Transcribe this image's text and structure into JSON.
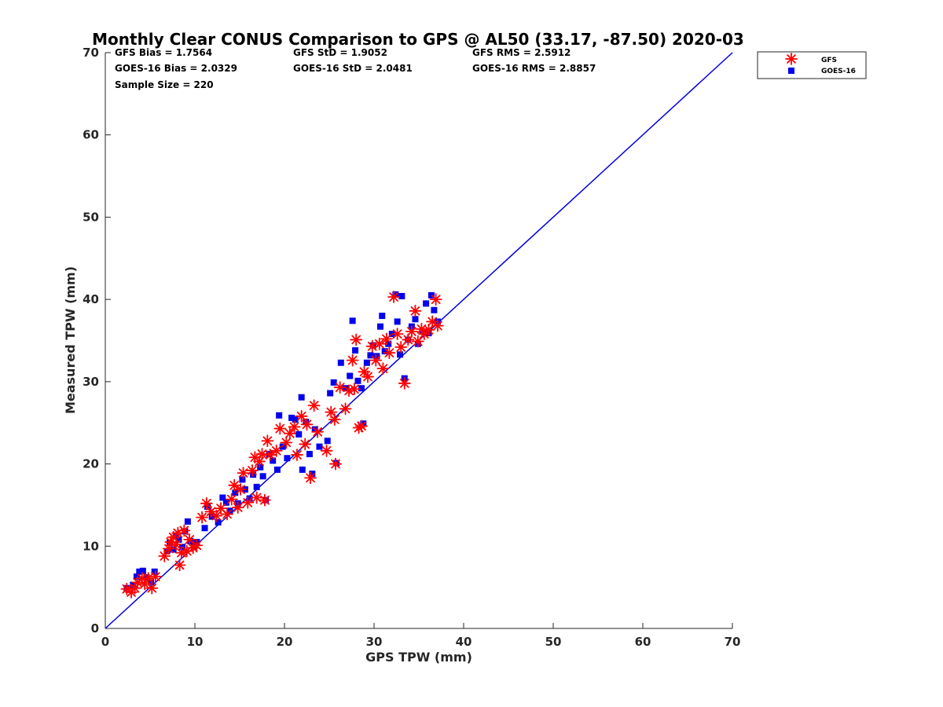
{
  "chart_data": {
    "type": "scatter",
    "title": "Monthly Clear CONUS Comparison to GPS @ AL50 (33.17, -87.50) 2020-03",
    "xlabel": "GPS TPW (mm)",
    "ylabel": "Measured TPW (mm)",
    "xlim": [
      0,
      70
    ],
    "ylim": [
      0,
      70
    ],
    "xticks": [
      "0",
      "10",
      "20",
      "30",
      "40",
      "50",
      "60",
      "70"
    ],
    "yticks": [
      "0",
      "10",
      "20",
      "30",
      "40",
      "50",
      "60",
      "70"
    ],
    "grid": false,
    "legend_position": "top-right, outside plot",
    "stats": [
      [
        "GFS Bias = 1.7564",
        "GFS StD = 1.9052",
        "GFS RMS = 2.5912"
      ],
      [
        "GOES-16 Bias = 2.0329",
        "GOES-16 StD = 2.0481",
        "GOES-16 RMS = 2.8857"
      ],
      [
        "Sample Size = 220"
      ]
    ],
    "reference_line": {
      "x": [
        0,
        70
      ],
      "y": [
        0,
        70
      ],
      "color": "#0000dd"
    },
    "series": [
      {
        "name": "GFS",
        "marker": "asterisk",
        "color": "#ff0000",
        "points": [
          [
            2.4,
            4.8
          ],
          [
            2.9,
            4.4
          ],
          [
            3.3,
            4.9
          ],
          [
            3.6,
            5.6
          ],
          [
            4.1,
            6.1
          ],
          [
            4.4,
            5.4
          ],
          [
            4.8,
            6.1
          ],
          [
            5.2,
            4.9
          ],
          [
            5.6,
            6.3
          ],
          [
            6.6,
            8.8
          ],
          [
            7.1,
            9.7
          ],
          [
            7.3,
            10.5
          ],
          [
            7.6,
            11.1
          ],
          [
            7.9,
            10.2
          ],
          [
            8.1,
            11.6
          ],
          [
            8.3,
            7.7
          ],
          [
            8.5,
            9.2
          ],
          [
            8.8,
            11.9
          ],
          [
            9.1,
            9.4
          ],
          [
            9.4,
            10.8
          ],
          [
            9.8,
            9.8
          ],
          [
            10.2,
            10.1
          ],
          [
            10.8,
            13.5
          ],
          [
            11.3,
            15.2
          ],
          [
            11.8,
            14.2
          ],
          [
            12.4,
            13.7
          ],
          [
            12.9,
            14.6
          ],
          [
            13.6,
            13.9
          ],
          [
            14.1,
            15.7
          ],
          [
            14.4,
            17.4
          ],
          [
            14.8,
            14.7
          ],
          [
            15.1,
            16.9
          ],
          [
            15.4,
            18.9
          ],
          [
            15.9,
            15.3
          ],
          [
            16.4,
            19.2
          ],
          [
            16.7,
            20.8
          ],
          [
            16.9,
            15.9
          ],
          [
            17.2,
            20.3
          ],
          [
            17.5,
            21.2
          ],
          [
            17.8,
            15.6
          ],
          [
            18.1,
            22.8
          ],
          [
            18.4,
            21.1
          ],
          [
            19.1,
            21.6
          ],
          [
            19.5,
            24.3
          ],
          [
            20.2,
            22.6
          ],
          [
            20.6,
            23.7
          ],
          [
            21.1,
            24.5
          ],
          [
            21.4,
            21.1
          ],
          [
            21.9,
            25.8
          ],
          [
            22.3,
            22.4
          ],
          [
            22.5,
            24.8
          ],
          [
            22.9,
            18.3
          ],
          [
            23.3,
            27.1
          ],
          [
            23.7,
            23.9
          ],
          [
            24.7,
            21.6
          ],
          [
            25.2,
            26.3
          ],
          [
            25.6,
            25.4
          ],
          [
            25.7,
            20.0
          ],
          [
            26.2,
            29.3
          ],
          [
            26.8,
            26.7
          ],
          [
            27.2,
            28.9
          ],
          [
            27.6,
            32.6
          ],
          [
            27.8,
            29.1
          ],
          [
            28.0,
            35.1
          ],
          [
            28.3,
            24.4
          ],
          [
            28.6,
            24.6
          ],
          [
            28.9,
            31.2
          ],
          [
            29.3,
            30.6
          ],
          [
            29.8,
            34.3
          ],
          [
            30.2,
            32.6
          ],
          [
            30.6,
            34.6
          ],
          [
            31.0,
            31.6
          ],
          [
            31.4,
            35.2
          ],
          [
            31.7,
            33.5
          ],
          [
            32.2,
            40.3
          ],
          [
            32.6,
            35.8
          ],
          [
            33.0,
            34.2
          ],
          [
            33.4,
            29.8
          ],
          [
            33.8,
            35.1
          ],
          [
            34.2,
            36.1
          ],
          [
            34.6,
            38.6
          ],
          [
            34.9,
            34.9
          ],
          [
            35.3,
            36.4
          ],
          [
            35.6,
            35.8
          ],
          [
            36.1,
            36.3
          ],
          [
            36.5,
            37.3
          ],
          [
            36.9,
            40.0
          ],
          [
            37.1,
            36.8
          ]
        ]
      },
      {
        "name": "GOES-16",
        "marker": "square",
        "color": "#0000ee",
        "points": [
          [
            2.4,
            4.9
          ],
          [
            3.1,
            5.3
          ],
          [
            3.5,
            6.3
          ],
          [
            3.8,
            6.9
          ],
          [
            4.2,
            7.0
          ],
          [
            4.6,
            6.2
          ],
          [
            5.1,
            5.6
          ],
          [
            5.5,
            6.9
          ],
          [
            6.9,
            9.4
          ],
          [
            7.2,
            10.4
          ],
          [
            7.6,
            9.6
          ],
          [
            7.9,
            11.3
          ],
          [
            8.2,
            10.8
          ],
          [
            8.6,
            9.9
          ],
          [
            8.9,
            11.8
          ],
          [
            9.2,
            13.0
          ],
          [
            9.5,
            10.6
          ],
          [
            9.9,
            9.9
          ],
          [
            10.2,
            10.5
          ],
          [
            11.1,
            12.2
          ],
          [
            11.4,
            14.8
          ],
          [
            11.9,
            13.6
          ],
          [
            12.6,
            12.9
          ],
          [
            13.1,
            15.9
          ],
          [
            13.5,
            15.3
          ],
          [
            13.9,
            14.3
          ],
          [
            14.5,
            16.5
          ],
          [
            14.8,
            15.2
          ],
          [
            15.3,
            18.1
          ],
          [
            15.6,
            16.9
          ],
          [
            16.1,
            15.8
          ],
          [
            16.5,
            18.7
          ],
          [
            16.9,
            17.2
          ],
          [
            17.3,
            19.6
          ],
          [
            17.6,
            18.5
          ],
          [
            17.9,
            15.6
          ],
          [
            18.3,
            21.2
          ],
          [
            18.7,
            20.4
          ],
          [
            19.2,
            19.3
          ],
          [
            19.4,
            25.9
          ],
          [
            19.8,
            22.1
          ],
          [
            20.3,
            20.7
          ],
          [
            20.8,
            25.6
          ],
          [
            21.2,
            25.4
          ],
          [
            21.6,
            23.6
          ],
          [
            21.9,
            28.1
          ],
          [
            22.0,
            19.3
          ],
          [
            22.4,
            25.1
          ],
          [
            22.8,
            21.2
          ],
          [
            23.1,
            18.8
          ],
          [
            23.4,
            24.2
          ],
          [
            23.9,
            22.1
          ],
          [
            24.8,
            22.8
          ],
          [
            25.1,
            28.6
          ],
          [
            25.5,
            29.9
          ],
          [
            25.8,
            20.1
          ],
          [
            26.3,
            32.3
          ],
          [
            26.8,
            29.2
          ],
          [
            27.3,
            30.7
          ],
          [
            27.6,
            37.4
          ],
          [
            27.9,
            33.8
          ],
          [
            28.2,
            30.1
          ],
          [
            28.6,
            29.2
          ],
          [
            28.8,
            24.9
          ],
          [
            29.2,
            32.3
          ],
          [
            29.6,
            33.2
          ],
          [
            29.9,
            34.4
          ],
          [
            30.3,
            33.1
          ],
          [
            30.7,
            36.7
          ],
          [
            30.9,
            38.0
          ],
          [
            31.2,
            33.7
          ],
          [
            31.6,
            34.6
          ],
          [
            32.0,
            35.8
          ],
          [
            32.4,
            40.6
          ],
          [
            32.6,
            37.3
          ],
          [
            32.9,
            33.3
          ],
          [
            33.1,
            40.4
          ],
          [
            33.4,
            30.4
          ],
          [
            33.8,
            35.1
          ],
          [
            34.2,
            36.7
          ],
          [
            34.6,
            37.6
          ],
          [
            34.9,
            34.6
          ],
          [
            35.4,
            36.1
          ],
          [
            35.8,
            39.5
          ],
          [
            36.1,
            35.9
          ],
          [
            36.4,
            40.5
          ],
          [
            36.7,
            38.7
          ],
          [
            37.1,
            37.3
          ]
        ]
      }
    ]
  }
}
